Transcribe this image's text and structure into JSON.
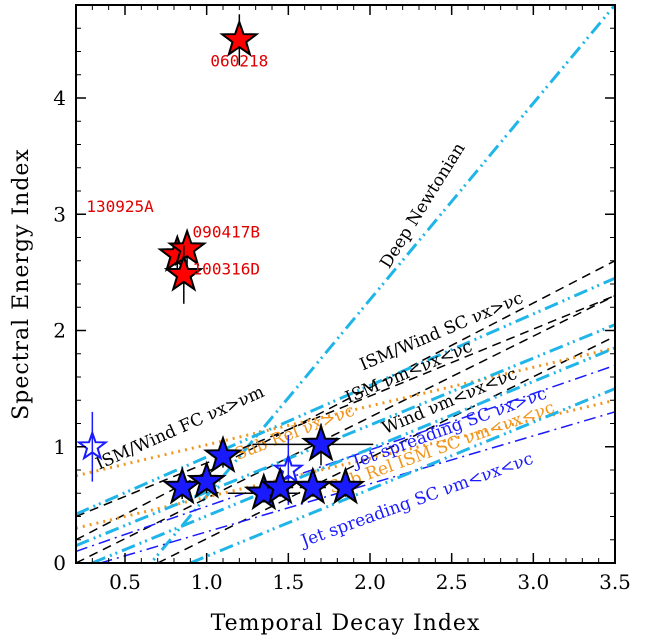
{
  "chart_data": {
    "type": "scatter",
    "xlabel": "Temporal Decay Index",
    "ylabel": "Spectral Energy Index",
    "xlim": [
      0.2,
      3.5
    ],
    "ylim": [
      0,
      4.8
    ],
    "xticks": [
      "0.5",
      "1.0",
      "1.5",
      "2.0",
      "2.5",
      "3.0",
      "3.5"
    ],
    "xtick_values": [
      0.5,
      1.0,
      1.5,
      2.0,
      2.5,
      3.0,
      3.5
    ],
    "yticks": [
      "0",
      "1",
      "2",
      "3",
      "4"
    ],
    "ytick_values": [
      0,
      1,
      2,
      3,
      4
    ],
    "grid": false,
    "colors": {
      "red": "#ff0000",
      "blue": "#1a1aff",
      "cyan": "#1fb5e8",
      "orange": "#f0961e",
      "black": "#000000",
      "label_red": "#e00000"
    },
    "points": {
      "red_filled": [
        {
          "x": 1.2,
          "y": 4.5,
          "yerr": [
            0.22,
            0.22
          ],
          "label": "060218"
        },
        {
          "x": 0.82,
          "y": 2.65,
          "yerr": [
            0.15,
            0.15
          ],
          "label": "130925A"
        },
        {
          "x": 0.88,
          "y": 2.7,
          "yerr": [
            0.15,
            0.15
          ],
          "label": "090417B"
        },
        {
          "x": 0.86,
          "y": 2.48,
          "yerr": [
            0.25,
            0.25
          ],
          "label": "100316D"
        }
      ],
      "blue_filled": [
        {
          "x": 1.1,
          "y": 0.92,
          "xerr": 0.05,
          "yerr": 0.1
        },
        {
          "x": 0.85,
          "y": 0.65,
          "xerr": 0.06,
          "yerr": 0.1
        },
        {
          "x": 1.0,
          "y": 0.7,
          "xerr": 0.06,
          "yerr": 0.1
        },
        {
          "x": 1.35,
          "y": 0.6,
          "xerr": 0.22,
          "yerr": 0.08
        },
        {
          "x": 1.45,
          "y": 0.65,
          "xerr": 0.08,
          "yerr": 0.08
        },
        {
          "x": 1.65,
          "y": 0.65,
          "xerr": 0.08,
          "yerr": 0.08
        },
        {
          "x": 1.85,
          "y": 0.65,
          "xerr": 0.05,
          "yerr": 0.08
        },
        {
          "x": 1.7,
          "y": 1.02,
          "xerr": [
            0.42,
            0.32
          ],
          "yerr": 0.18
        }
      ],
      "blue_open": [
        {
          "x": 0.3,
          "y": 1.0,
          "yerr": [
            0.3,
            0.3
          ]
        },
        {
          "x": 1.5,
          "y": 0.8,
          "yerr": [
            0.3,
            0.3
          ]
        }
      ]
    },
    "lines": [
      {
        "name": "Deep Newtonian",
        "color": "cyan",
        "style": "dashdotdot",
        "width": 3,
        "x": [
          0.6,
          3.5
        ],
        "y": [
          -0.1,
          4.8
        ]
      },
      {
        "name": "ISM/Wind SC νx>νc",
        "color": "black",
        "style": "dash",
        "width": 1.5,
        "x": [
          0.2,
          3.5
        ],
        "y": [
          0.2,
          2.6
        ]
      },
      {
        "name": "ISM νm<νx<νc",
        "color": "black",
        "style": "dash",
        "width": 1.5,
        "x": [
          0.2,
          3.5
        ],
        "y": [
          0.0,
          2.3
        ]
      },
      {
        "name": "Wind νm<νx<νc",
        "color": "black",
        "style": "dash",
        "width": 1.5,
        "x": [
          0.7,
          3.5
        ],
        "y": [
          0.0,
          1.95
        ]
      },
      {
        "name": "ISM/Wind FC νx>νm",
        "color": "black",
        "style": "dash",
        "width": 1.5,
        "x": [
          0.2,
          3.5
        ],
        "y": [
          0.4,
          2.3
        ]
      },
      {
        "name": "Sub Rel νx>νc",
        "color": "orange",
        "style": "dot",
        "width": 3,
        "x": [
          0.2,
          3.5
        ],
        "y": [
          0.75,
          1.85
        ]
      },
      {
        "name": "Sub Rel ISM SC νm<νx<νc",
        "color": "orange",
        "style": "dot",
        "width": 3,
        "x": [
          0.2,
          3.5
        ],
        "y": [
          0.3,
          1.4
        ]
      },
      {
        "name": "Jet spreading SC νx>νc",
        "color": "blue",
        "style": "dashdot",
        "width": 1.5,
        "x": [
          0.2,
          3.5
        ],
        "y": [
          0.1,
          1.7
        ]
      },
      {
        "name": "Jet spreading SC νm<νx<νc",
        "color": "blue",
        "style": "dashdot",
        "width": 1.5,
        "x": [
          0.35,
          3.5
        ],
        "y": [
          0.0,
          1.3
        ]
      },
      {
        "name": "",
        "color": "cyan",
        "style": "dashdotdot",
        "width": 3,
        "x": [
          0.2,
          3.5
        ],
        "y": [
          0.42,
          2.45
        ]
      },
      {
        "name": "",
        "color": "cyan",
        "style": "dashdotdot",
        "width": 3,
        "x": [
          0.2,
          3.5
        ],
        "y": [
          0.15,
          2.05
        ]
      },
      {
        "name": "",
        "color": "cyan",
        "style": "dashdotdot",
        "width": 3,
        "x": [
          0.3,
          3.5
        ],
        "y": [
          0.0,
          1.85
        ]
      },
      {
        "name": "",
        "color": "cyan",
        "style": "dashdotdot",
        "width": 3,
        "x": [
          0.9,
          3.5
        ],
        "y": [
          0.0,
          1.5
        ]
      }
    ],
    "line_labels": [
      {
        "text": "Deep Newtonian",
        "color": "black",
        "x": 2.35,
        "y": 3.05,
        "angle": -58
      },
      {
        "text": "ISM/Wind SC νx>νc",
        "color": "black",
        "x": 2.45,
        "y": 1.95,
        "angle": -23
      },
      {
        "text": "ISM νm<νx<νc",
        "color": "black",
        "x": 2.25,
        "y": 1.6,
        "angle": -23
      },
      {
        "text": "Wind νm<νx<νc",
        "color": "black",
        "x": 2.5,
        "y": 1.35,
        "angle": -23
      },
      {
        "text": "ISM/Wind FC νx>νm",
        "color": "black",
        "x": 0.85,
        "y": 1.12,
        "angle": -24
      },
      {
        "text": "Sub Rel νx>νc",
        "color": "orange",
        "x": 1.55,
        "y": 1.08,
        "angle": -21
      },
      {
        "text": "Jet spreading SC νx>νc",
        "color": "blue",
        "x": 2.5,
        "y": 1.12,
        "angle": -20
      },
      {
        "text": "Sub Rel ISM SC νm<νx<νc",
        "color": "orange",
        "x": 2.45,
        "y": 0.95,
        "angle": -20
      },
      {
        "text": "Jet spreading SC νm<νx<νc",
        "color": "blue",
        "x": 2.3,
        "y": 0.5,
        "angle": -20
      }
    ],
    "point_labels": [
      {
        "text": "060218",
        "color": "label_red",
        "x": 1.2,
        "y": 4.27
      },
      {
        "text": "130925A",
        "color": "label_red",
        "x": 0.47,
        "y": 3.02
      },
      {
        "text": "090417B",
        "color": "label_red",
        "x": 1.12,
        "y": 2.8
      },
      {
        "text": "100316D",
        "color": "label_red",
        "x": 1.12,
        "y": 2.48
      }
    ]
  }
}
